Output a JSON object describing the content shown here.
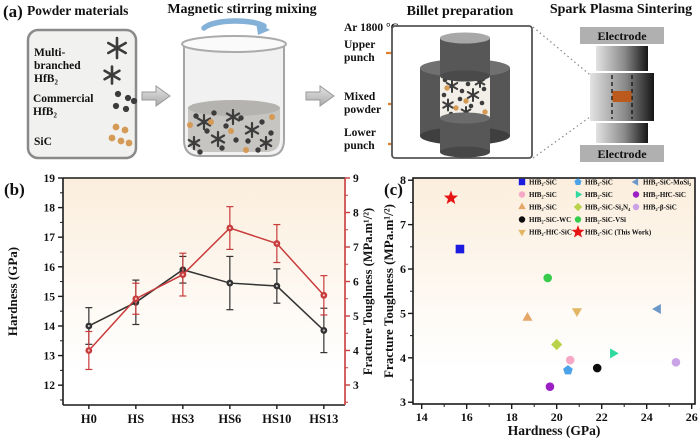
{
  "panel_a": {
    "label": "(a)",
    "powder": {
      "title": "Powder materials",
      "line1": "Multi-",
      "line2": "branched",
      "line3": "HfB₂",
      "line4": "Commercial",
      "line5": "HfB₂",
      "line6": "SiC",
      "icons": [
        "multibranched-star-particles",
        "dark-dot-particles",
        "tan-dot-particles"
      ]
    },
    "mixing": {
      "title": "Magnetic stirring mixing"
    },
    "billet": {
      "title": "Billet preparation",
      "atmosphere": "Ar 1800 °C",
      "upper1": "Upper",
      "upper2": "punch",
      "mixed1": "Mixed",
      "mixed2": "powder",
      "lower1": "Lower",
      "lower2": "punch"
    },
    "sps": {
      "title": "Spark Plasma Sintering",
      "electrode_top": "Electrode",
      "electrode_bottom": "Electrode"
    }
  },
  "panel_b": {
    "label": "(b)"
  },
  "panel_c": {
    "label": "(c)"
  },
  "colors": {
    "accent_red": "#c83c3c",
    "series_black": "#333333",
    "peach_top": "#fbeedd",
    "leader_orange": "#e07f2e",
    "atmosphere_green": "#6a9c21",
    "tan_particle": "#d49a56",
    "dark_particle": "#3c3c3c",
    "sample_orange": "#bc5a1d",
    "blue_arrow": "#84b1d8"
  },
  "chart_data": [
    {
      "id": "b",
      "type": "line",
      "categories": [
        "H0",
        "HS",
        "HS3",
        "HS6",
        "HS10",
        "HS13"
      ],
      "left_axis": {
        "label": "Hardness (GPa)",
        "ticks": [
          12,
          13,
          14,
          15,
          16,
          17,
          18,
          19
        ],
        "range": [
          11.33,
          19
        ],
        "color": "#1a1a1a"
      },
      "right_axis": {
        "label": "Fracture Toughness (MPa.m¹/²)",
        "ticks": [
          3,
          4,
          5,
          6,
          7,
          8,
          9
        ],
        "range": [
          2.42,
          9
        ],
        "color": "#c83c3c"
      },
      "grid": false,
      "series": [
        {
          "name": "Hardness",
          "axis": "left",
          "color": "#333333",
          "values": [
            14.0,
            14.8,
            15.9,
            15.45,
            15.35,
            13.85
          ],
          "errors": [
            0.62,
            0.75,
            0.45,
            0.9,
            0.58,
            0.75
          ]
        },
        {
          "name": "Fracture Toughness",
          "axis": "right",
          "color": "#c83c3c",
          "values": [
            4.0,
            5.5,
            6.2,
            7.55,
            7.1,
            5.6
          ],
          "errors": [
            0.55,
            0.45,
            0.62,
            0.62,
            0.55,
            0.57
          ]
        }
      ]
    },
    {
      "id": "c",
      "type": "scatter",
      "xlabel": "Hardness (GPa)",
      "ylabel": "Fracture Toughness (MPa.m¹/²)",
      "xticks": [
        14,
        16,
        18,
        20,
        22,
        24,
        26
      ],
      "xrange": [
        13.4,
        26.2
      ],
      "yticks": [
        3,
        4,
        5,
        6,
        7,
        8
      ],
      "yrange": [
        2.96,
        8.05
      ],
      "grid": false,
      "legend_position": "top-right",
      "points": [
        {
          "label": "HfB₂-SiC",
          "marker": "square",
          "color": "#1a1ae0",
          "x": 15.7,
          "y": 6.45
        },
        {
          "label": "HfB₂-SiC",
          "marker": "pentagon",
          "color": "#4da3e8",
          "x": 20.5,
          "y": 3.72
        },
        {
          "label": "HfB₂-SiC-MoSi₂",
          "marker": "triangle-left",
          "color": "#6b97c9",
          "x": 24.5,
          "y": 5.1
        },
        {
          "label": "HfB₂-SiC",
          "marker": "circle",
          "color": "#f5a9c6",
          "x": 20.6,
          "y": 3.95
        },
        {
          "label": "HfB₂-SiC",
          "marker": "triangle-right",
          "color": "#2fd9a0",
          "x": 22.5,
          "y": 4.1
        },
        {
          "label": "HfB₂-HfC-SiC",
          "marker": "circle",
          "color": "#9b1fc4",
          "x": 19.7,
          "y": 3.35
        },
        {
          "label": "HfB₂-SiC",
          "marker": "triangle-up",
          "color": "#e5a668",
          "x": 18.7,
          "y": 4.9
        },
        {
          "label": "HfB₂-SiC-Si₃N₄",
          "marker": "diamond",
          "color": "#b8d24a",
          "x": 20.0,
          "y": 4.3
        },
        {
          "label": "HfB₂-β-SiC",
          "marker": "circle",
          "color": "#c9a3e6",
          "x": 25.3,
          "y": 3.9
        },
        {
          "label": "HfB₂-SiC-WC",
          "marker": "circle",
          "color": "#0d0d0d",
          "x": 21.8,
          "y": 3.77
        },
        {
          "label": "HfB₂-SiC-VSi",
          "marker": "circle",
          "color": "#37cc4e",
          "x": 19.6,
          "y": 5.8
        },
        {
          "label": "HfB₂-HfC-SiC",
          "marker": "triangle-down",
          "color": "#e2b664",
          "x": 20.9,
          "y": 5.05
        },
        {
          "label": "HfB₂-SiC (This Work)",
          "marker": "star",
          "color": "#e61414",
          "x": 15.3,
          "y": 7.6
        }
      ],
      "legend_rows": [
        [
          0,
          1,
          2
        ],
        [
          3,
          4,
          5
        ],
        [
          6,
          7,
          8
        ],
        [
          9,
          10
        ],
        [
          11,
          12
        ]
      ]
    }
  ]
}
